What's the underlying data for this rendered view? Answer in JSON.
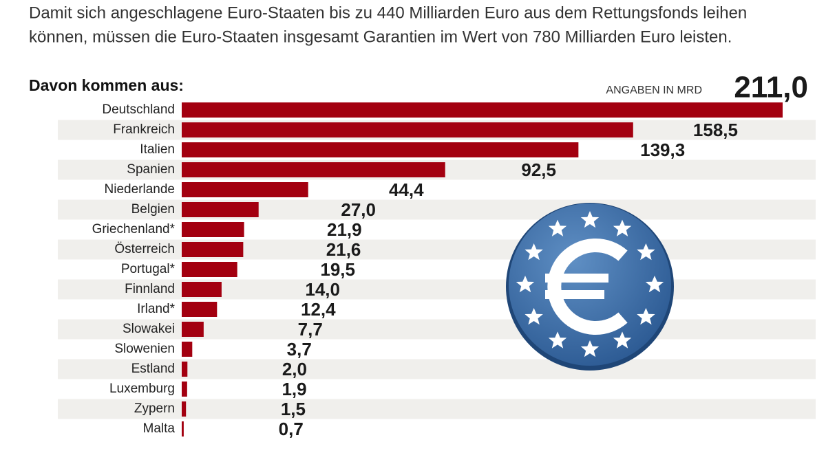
{
  "chart_data": {
    "type": "bar",
    "orientation": "horizontal",
    "description": [
      "Damit sich angeschlagene Euro-Staaten bis zu 440 Milliarden Euro aus dem Rettungsfonds leihen",
      "können, müssen die Euro-Staaten insgesamt Garantien im Wert von 780 Milliarden Euro leisten."
    ],
    "subtitle": "Davon kommen aus:",
    "unit_note": "ANGABEN IN MRD",
    "categories": [
      "Deutschland",
      "Frankreich",
      "Italien",
      "Spanien",
      "Niederlande",
      "Belgien",
      "Griechenland*",
      "Österreich",
      "Portugal*",
      "Finnland",
      "Irland*",
      "Slowakei",
      "Slowenien",
      "Estland",
      "Luxemburg",
      "Zypern",
      "Malta"
    ],
    "values": [
      211.0,
      158.5,
      139.3,
      92.5,
      44.4,
      27.0,
      21.9,
      21.6,
      19.5,
      14.0,
      12.4,
      7.7,
      3.7,
      2.0,
      1.9,
      1.5,
      0.7
    ],
    "value_labels": [
      "211,0",
      "158,5",
      "139,3",
      "92,5",
      "44,4",
      "27,0",
      "21,9",
      "21,6",
      "19,5",
      "14,0",
      "12,4",
      "7,7",
      "3,7",
      "2,0",
      "1,9",
      "1,5",
      "0,7"
    ],
    "color": "#a30010",
    "stripe_color": "#f0efec"
  }
}
